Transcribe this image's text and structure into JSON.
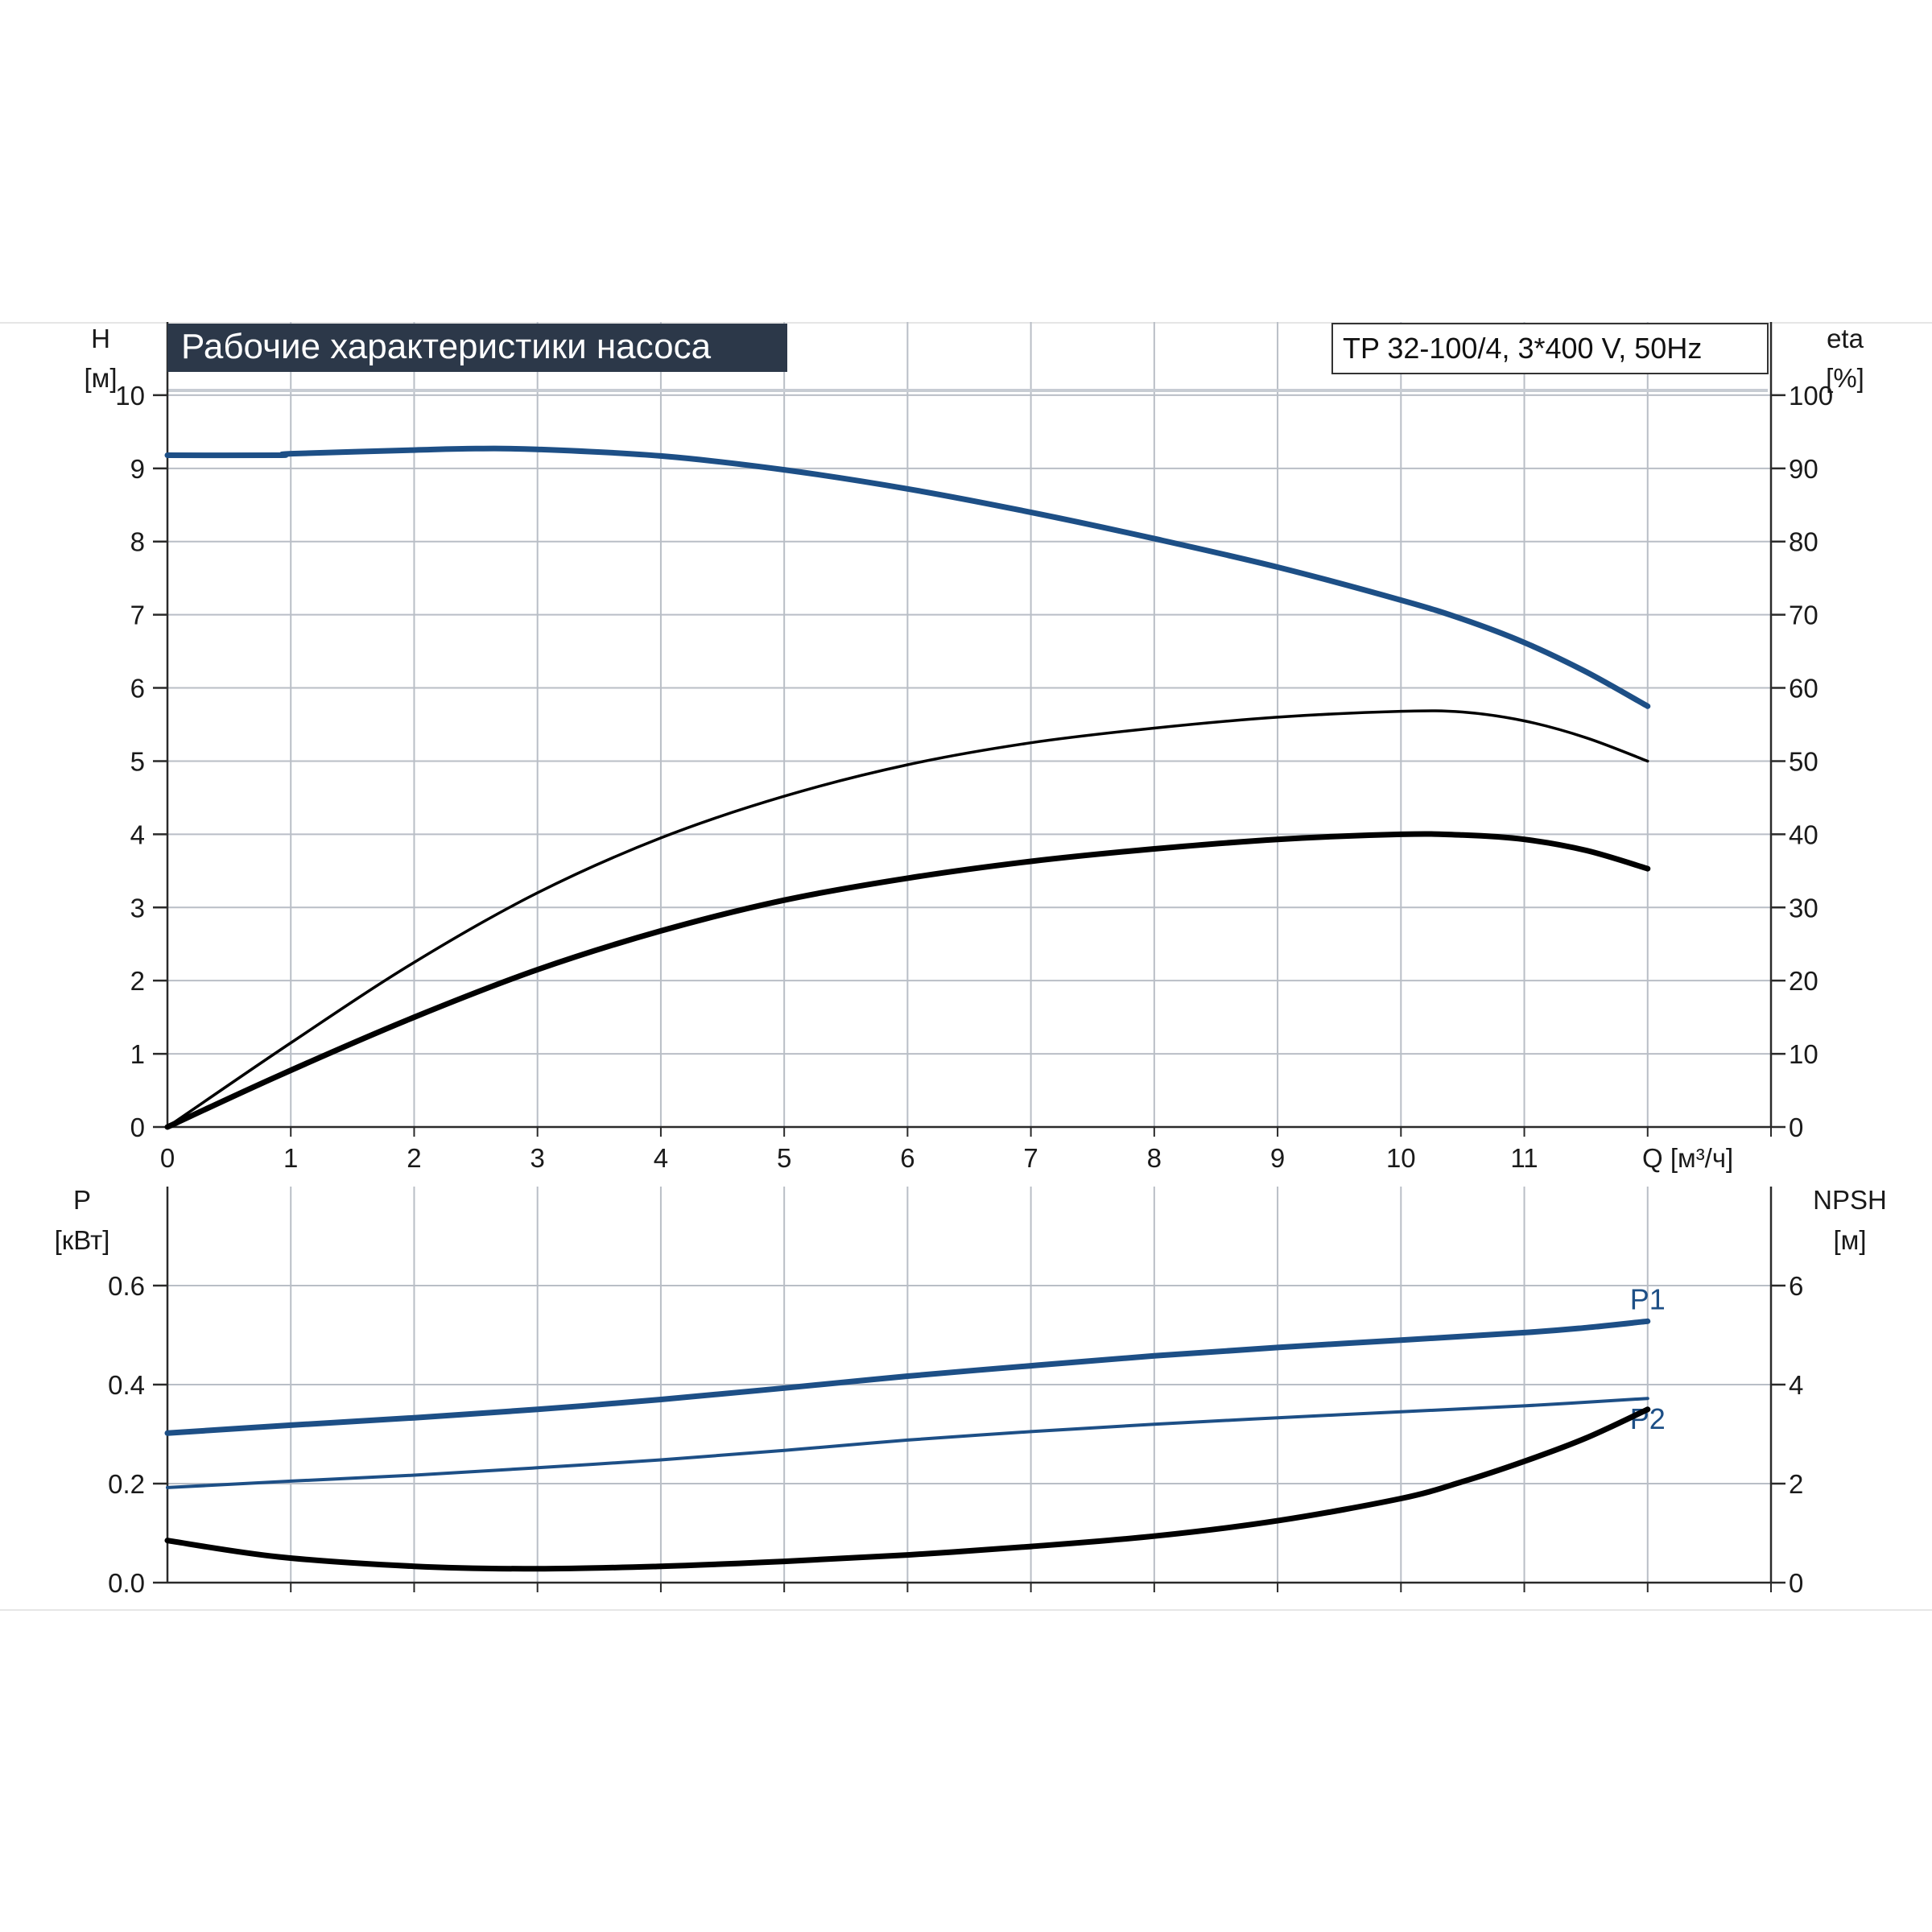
{
  "header": {
    "title": "Рабочие характеристики насоса",
    "model": "TP 32-100/4, 3*400 V, 50Hz"
  },
  "colors": {
    "blue": "#1d4f86",
    "black": "#000000",
    "grid": "#b9bec6",
    "title_bg": "#2c3849",
    "title_fg": "#ffffff"
  },
  "axes": {
    "top_left": {
      "name": "H",
      "unit": "[м]"
    },
    "top_right": {
      "name": "eta",
      "unit": "[%]"
    },
    "x": {
      "label": "Q [м³/ч]"
    },
    "bottom_left": {
      "name": "P",
      "unit": "[кВт]"
    },
    "bottom_right": {
      "name": "NPSH",
      "unit": "[м]"
    }
  },
  "chart_data": [
    {
      "type": "line",
      "panel": "top",
      "x_ticks": [
        "0",
        "1",
        "2",
        "3",
        "4",
        "5",
        "6",
        "7",
        "8",
        "9",
        "10",
        "11"
      ],
      "left_ticks": [
        "0",
        "1",
        "2",
        "3",
        "4",
        "5",
        "6",
        "7",
        "8",
        "9",
        "10"
      ],
      "right_ticks": [
        "0",
        "10",
        "20",
        "30",
        "40",
        "50",
        "60",
        "70",
        "80",
        "90",
        "100"
      ],
      "xlim": [
        0,
        13
      ],
      "ylim_left": [
        0,
        11
      ],
      "ylim_right": [
        0,
        110
      ],
      "series": [
        {
          "key": "H",
          "axis": "left",
          "color": "#1d4f86",
          "x": [
            0,
            0.9,
            1,
            2,
            2.5,
            3,
            4,
            5,
            6,
            7,
            8,
            9,
            10,
            10.5,
            11,
            11.5,
            12
          ],
          "y": [
            9.18,
            9.18,
            9.2,
            9.25,
            9.27,
            9.26,
            9.17,
            8.98,
            8.72,
            8.4,
            8.04,
            7.65,
            7.2,
            6.94,
            6.62,
            6.22,
            5.75
          ]
        },
        {
          "key": "eta_pump",
          "axis": "right",
          "color": "#000000",
          "x": [
            0,
            1,
            2,
            3,
            4,
            5,
            6,
            7,
            8,
            9,
            10,
            10.5,
            11,
            11.5,
            12
          ],
          "y": [
            0,
            11.5,
            22.5,
            32,
            39.5,
            45.2,
            49.5,
            52.5,
            54.5,
            56,
            56.8,
            56.7,
            55.5,
            53.2,
            50
          ]
        },
        {
          "key": "eta_total",
          "axis": "right",
          "color": "#000000",
          "x": [
            0,
            0.9,
            2,
            3,
            4,
            5,
            6,
            7,
            8,
            9,
            10,
            10.5,
            11,
            11.5,
            12
          ],
          "y": [
            0,
            7,
            15,
            21.5,
            26.8,
            31,
            34,
            36.3,
            38,
            39.3,
            40,
            39.9,
            39.3,
            37.8,
            35.3
          ]
        }
      ]
    },
    {
      "type": "line",
      "panel": "bottom",
      "left_ticks": [
        "0.0",
        "0.2",
        "0.4",
        "0.6"
      ],
      "right_ticks": [
        "0",
        "2",
        "4",
        "6"
      ],
      "xlim": [
        0,
        13
      ],
      "ylim_left": [
        0,
        0.8
      ],
      "ylim_right": [
        0,
        8
      ],
      "series": [
        {
          "key": "P1",
          "name": "P1",
          "axis": "left",
          "color": "#1d4f86",
          "x": [
            0,
            1,
            2,
            3,
            4,
            5,
            6,
            7,
            8,
            9,
            10,
            11,
            11.5,
            12
          ],
          "y": [
            0.302,
            0.318,
            0.333,
            0.35,
            0.37,
            0.393,
            0.417,
            0.438,
            0.458,
            0.475,
            0.49,
            0.505,
            0.515,
            0.528
          ]
        },
        {
          "key": "P2",
          "name": "P2",
          "axis": "left",
          "color": "#1d4f86",
          "x": [
            0,
            1,
            2,
            3,
            4,
            5,
            6,
            7,
            8,
            9,
            10,
            11,
            12
          ],
          "y": [
            0.192,
            0.205,
            0.217,
            0.232,
            0.248,
            0.267,
            0.288,
            0.305,
            0.32,
            0.333,
            0.345,
            0.357,
            0.372
          ]
        },
        {
          "key": "NPSH",
          "axis": "right",
          "color": "#000000",
          "x": [
            0,
            0.9,
            2,
            3,
            4,
            5,
            6,
            7,
            8,
            9,
            10,
            10.5,
            11,
            11.5,
            12
          ],
          "y": [
            0.85,
            0.52,
            0.33,
            0.28,
            0.33,
            0.43,
            0.56,
            0.73,
            0.94,
            1.25,
            1.7,
            2.04,
            2.45,
            2.92,
            3.5
          ]
        }
      ]
    }
  ]
}
